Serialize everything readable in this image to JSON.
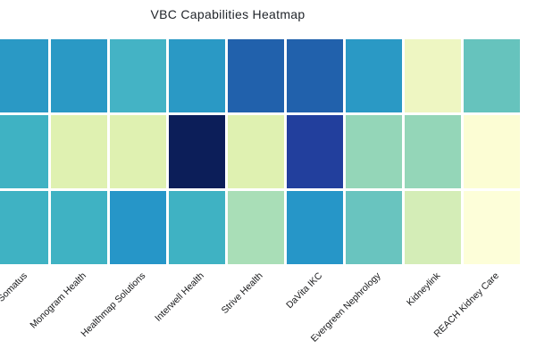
{
  "title": "VBC Capabilities Heatmap",
  "chart_data": {
    "type": "heatmap",
    "title": "VBC Capabilities Heatmap",
    "colormap": "YlGnBu",
    "legend_position": "none",
    "grid_gap_color": "#ffffff",
    "x_labels": [
      "Somatus",
      "Monogram Health",
      "Healthmap Solutions",
      "Interwell Health",
      "Strive Health",
      "DaVita IKC",
      "Evergreen Nephrology",
      "Kidneylink",
      "REACH Kidney Care"
    ],
    "n_rows": 3,
    "values_normalized": [
      [
        0.6,
        0.6,
        0.5,
        0.6,
        0.75,
        0.75,
        0.6,
        0.13,
        0.44
      ],
      [
        0.51,
        0.17,
        0.17,
        0.97,
        0.17,
        0.86,
        0.34,
        0.34,
        0.02
      ],
      [
        0.51,
        0.51,
        0.61,
        0.51,
        0.29,
        0.61,
        0.43,
        0.22,
        0.02
      ]
    ],
    "cell_colors": [
      [
        "#2a99c5",
        "#2a99c5",
        "#44b3c5",
        "#2a99c5",
        "#2161ac",
        "#2161ac",
        "#2a99c5",
        "#eef6c2",
        "#66c3bd"
      ],
      [
        "#3fb2c3",
        "#dff1b1",
        "#dff1b1",
        "#0c1e59",
        "#dff1b1",
        "#223f9d",
        "#94d6b8",
        "#94d6b8",
        "#fcfdd4"
      ],
      [
        "#3fb2c3",
        "#3fb2c3",
        "#2696c8",
        "#3fb2c3",
        "#a9deb7",
        "#2696c8",
        "#69c4bf",
        "#d4edb7",
        "#fdfed9"
      ]
    ]
  }
}
